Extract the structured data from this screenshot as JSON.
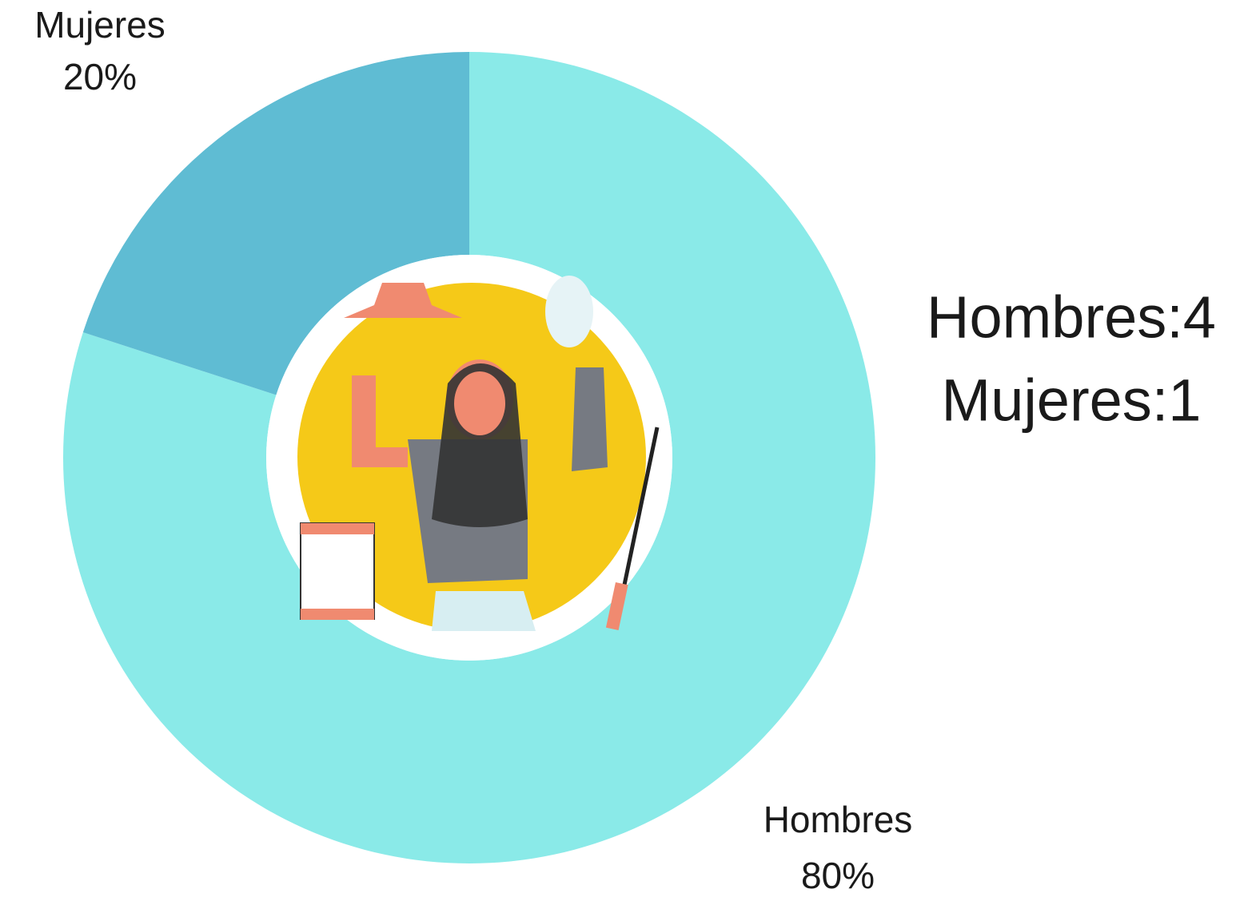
{
  "chart_data": {
    "type": "donut",
    "categories": [
      "Hombres",
      "Mujeres"
    ],
    "values": [
      80,
      20
    ],
    "value_labels": [
      "80%",
      "20%"
    ],
    "colors": [
      "#8aeae8",
      "#5fbcd3"
    ],
    "annotations": [
      "Hombres:4",
      "Mujeres:1"
    ]
  }
}
